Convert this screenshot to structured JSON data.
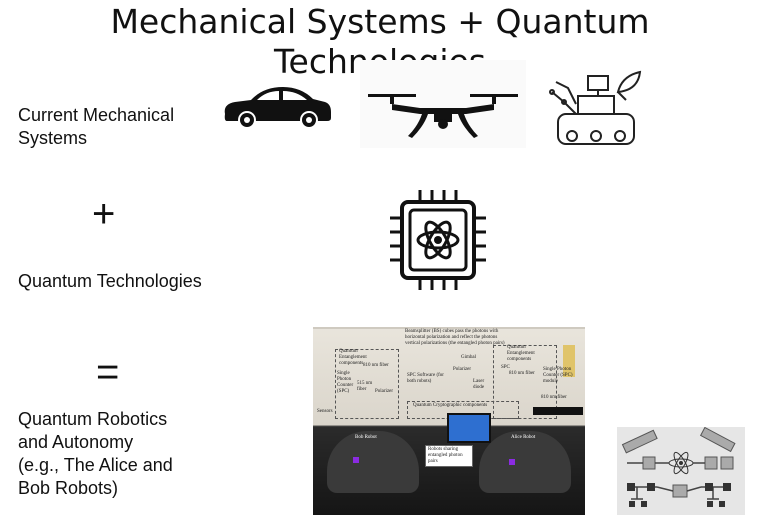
{
  "slide": {
    "title": "Mechanical Systems + Quantum Technologies"
  },
  "rows": {
    "mechanical_label": "Current Mechanical\nSystems",
    "plus_symbol": "+",
    "quantum_label": "Quantum Technologies",
    "equals_symbol": "=",
    "robotics_label": "Quantum Robotics\nand Autonomy\n(e.g., The Alice and\nBob Robots)"
  },
  "icons": {
    "car": "car-icon",
    "drone": "drone-icon",
    "rover": "robot-rover-icon",
    "quantum_chip": "quantum-chip-icon",
    "diagram": "quantum-robot-diagram-icon"
  },
  "photo_annotations": {
    "top_caption": "Beamsplitter (BS) cubes pass the photons with horizontal polarization and reflect the photons vertical polarizations (the entangled photon pairs)",
    "left_box": "Quantum Entanglement components",
    "right_box": "Quantum Entanglement components",
    "fiber_left": "810 nm fiber",
    "fiber_left_2": "515 nm fiber",
    "spc_left": "Single Photon Counter (SPC)",
    "spc_software": "SPC Software (for both robots)",
    "polarizer_left": "Polarizer",
    "gimbal": "Gimbal",
    "polarizer_right": "Polarizer",
    "laser_diode": "Laser diode",
    "spc_right": "SPC",
    "fiber_right": "810 nm fiber",
    "spc_module_right": "Single Photon Counter (SPC) module",
    "fiber_right_2": "810 nm fiber",
    "crypto": "Quantum Cryptographic components",
    "sensors": "Sensors",
    "bob": "Bob Robot",
    "alice": "Alice Robot",
    "sharing": "Robots sharing entangled photon pairs"
  },
  "colors": {
    "text": "#111111",
    "icon": "#111111",
    "background": "#ffffff"
  }
}
